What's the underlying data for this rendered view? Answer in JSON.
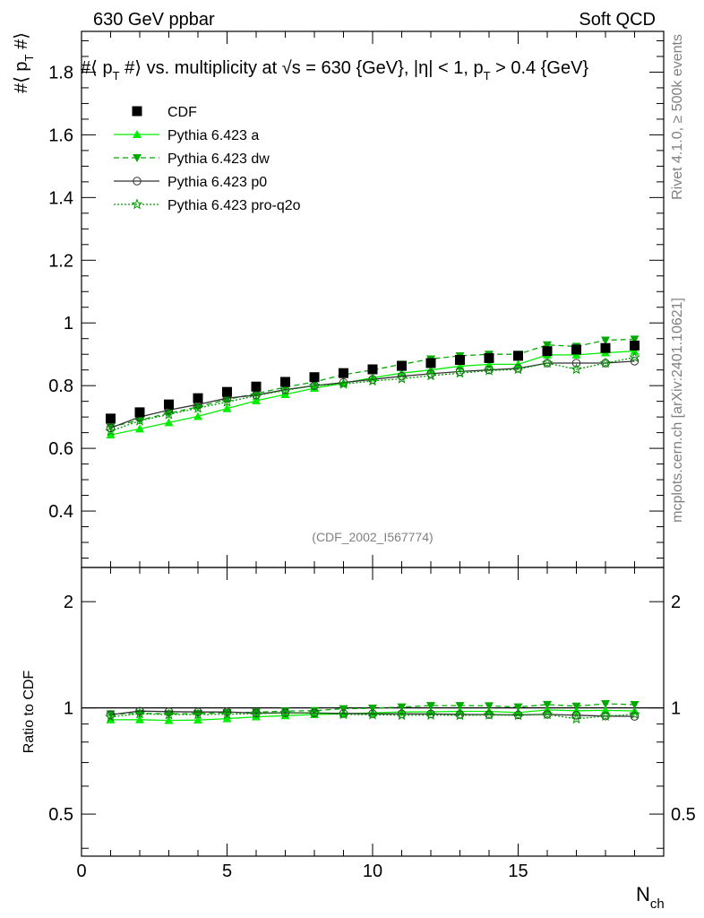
{
  "header": {
    "left": "630 GeV ppbar",
    "right": "Soft QCD"
  },
  "side": {
    "rivet": "Rivet 4.1.0, ≥ 500k events",
    "mcplots": "mcplots.cern.ch [arXiv:2401.10621]"
  },
  "chart_data": {
    "type": "line",
    "title": "#⟨ p_T #⟩ vs. multiplicity at √s = 630 {GeV}, |η| < 1, p_T > 0.4 {GeV}",
    "analysis_id": "(CDF_2002_I567774)",
    "xlabel": "N_ch",
    "ylabel": "#⟨ p_T #⟩",
    "ratio_ylabel": "Ratio to CDF",
    "xlim": [
      0,
      20
    ],
    "ylim": [
      0.22,
      1.93
    ],
    "ratio_ylim": [
      0.38,
      2.5
    ],
    "x_ticks": [
      0,
      5,
      10,
      15
    ],
    "y_ticks": [
      0.4,
      0.6,
      0.8,
      1,
      1.2,
      1.4,
      1.6,
      1.8
    ],
    "y_tick_labels": [
      "0.4",
      "0.6",
      "0.8",
      "1",
      "1.2",
      "1.4",
      "1.6",
      "1.8"
    ],
    "ratio_ticks": [
      0.5,
      1,
      2
    ],
    "ratio_tick_labels": [
      "0.5",
      "1",
      "2"
    ],
    "x": [
      1,
      2,
      3,
      4,
      5,
      6,
      7,
      8,
      9,
      10,
      11,
      12,
      13,
      14,
      15,
      16,
      17,
      18,
      19
    ],
    "data": {
      "name": "CDF",
      "color": "#000000",
      "values": [
        0.695,
        0.715,
        0.74,
        0.76,
        0.78,
        0.797,
        0.812,
        0.827,
        0.84,
        0.852,
        0.863,
        0.872,
        0.882,
        0.888,
        0.895,
        0.91,
        0.915,
        0.92,
        0.928
      ]
    },
    "series": [
      {
        "name": "Pythia 6.423 a",
        "color": "#00ee00",
        "marker": "triangle-up",
        "dash": "solid",
        "values": [
          0.643,
          0.662,
          0.682,
          0.702,
          0.727,
          0.752,
          0.772,
          0.792,
          0.808,
          0.825,
          0.84,
          0.85,
          0.862,
          0.868,
          0.868,
          0.898,
          0.898,
          0.905,
          0.91
        ]
      },
      {
        "name": "Pythia 6.423 dw",
        "color": "#00aa00",
        "marker": "triangle-down",
        "dash": "dashed",
        "values": [
          0.668,
          0.69,
          0.712,
          0.732,
          0.756,
          0.775,
          0.795,
          0.812,
          0.835,
          0.85,
          0.868,
          0.885,
          0.895,
          0.9,
          0.9,
          0.93,
          0.925,
          0.945,
          0.948
        ]
      },
      {
        "name": "Pythia 6.423 p0",
        "color": "#333333",
        "marker": "open-circle",
        "dash": "solid",
        "values": [
          0.665,
          0.7,
          0.722,
          0.74,
          0.76,
          0.77,
          0.787,
          0.8,
          0.81,
          0.82,
          0.83,
          0.838,
          0.845,
          0.85,
          0.855,
          0.872,
          0.872,
          0.872,
          0.878
        ]
      },
      {
        "name": "Pythia 6.423 pro-q2o",
        "color": "#009900",
        "marker": "open-star",
        "dash": "dotted",
        "values": [
          0.655,
          0.688,
          0.708,
          0.728,
          0.748,
          0.768,
          0.785,
          0.8,
          0.805,
          0.815,
          0.822,
          0.832,
          0.84,
          0.848,
          0.852,
          0.872,
          0.852,
          0.872,
          0.89
        ]
      }
    ]
  }
}
